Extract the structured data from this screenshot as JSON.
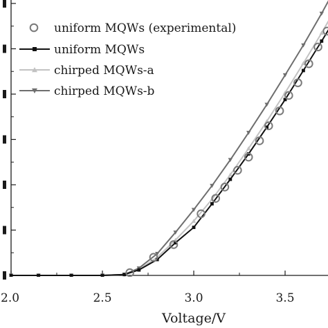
{
  "chart_data": {
    "type": "line",
    "xlabel": "Voltage/V",
    "ylabel": "",
    "xlim": [
      2.0,
      3.75
    ],
    "ylim": [
      0,
      6
    ],
    "x_ticks": [
      {
        "value": 2.0,
        "label": "2.0"
      },
      {
        "value": 2.5,
        "label": "2.5"
      },
      {
        "value": 3.0,
        "label": "3.0"
      },
      {
        "value": 3.5,
        "label": "3.5"
      }
    ],
    "y_ticks": [
      0,
      1,
      2,
      3,
      4,
      5,
      6
    ],
    "legend_position": "top-left",
    "series": [
      {
        "name": "uniform MQWs (experimental)",
        "style": "markers",
        "marker": "open-circle",
        "color": "#7a7a7a",
        "x": [
          2.65,
          2.78,
          2.89,
          3.04,
          3.12,
          3.17,
          3.24,
          3.3,
          3.36,
          3.41,
          3.47,
          3.52,
          3.57,
          3.63,
          3.68,
          3.73
        ],
        "y": [
          0.06,
          0.4,
          0.68,
          1.36,
          1.7,
          1.95,
          2.32,
          2.61,
          2.97,
          3.3,
          3.63,
          3.97,
          4.25,
          4.67,
          5.04,
          5.39
        ]
      },
      {
        "name": "uniform MQWs",
        "style": "line-markers",
        "marker": "square",
        "color": "#111111",
        "x": [
          2.0,
          2.15,
          2.33,
          2.5,
          2.62,
          2.7,
          2.8,
          2.9,
          3.0,
          3.1,
          3.2,
          3.3,
          3.4,
          3.5,
          3.6,
          3.7,
          3.75
        ],
        "y": [
          0.0,
          0.0,
          0.0,
          0.0,
          0.02,
          0.12,
          0.35,
          0.72,
          1.06,
          1.58,
          2.12,
          2.68,
          3.27,
          3.88,
          4.52,
          5.17,
          5.5
        ]
      },
      {
        "name": "chirped MQWs-a",
        "style": "line-markers",
        "marker": "triangle-up",
        "color": "#c2c2c2",
        "x": [
          2.0,
          2.15,
          2.33,
          2.5,
          2.62,
          2.7,
          2.8,
          2.9,
          3.0,
          3.1,
          3.2,
          3.3,
          3.4,
          3.5,
          3.6,
          3.7,
          3.75
        ],
        "y": [
          0.0,
          0.0,
          0.0,
          0.0,
          0.02,
          0.13,
          0.4,
          0.78,
          1.2,
          1.68,
          2.22,
          2.8,
          3.4,
          4.03,
          4.68,
          5.35,
          5.7
        ]
      },
      {
        "name": "chirped MQWs-b",
        "style": "line-markers",
        "marker": "triangle-down",
        "color": "#6e6e6e",
        "x": [
          2.0,
          2.15,
          2.33,
          2.5,
          2.62,
          2.7,
          2.8,
          2.9,
          3.0,
          3.1,
          3.2,
          3.3,
          3.4,
          3.5,
          3.6,
          3.7,
          3.75
        ],
        "y": [
          0.0,
          0.0,
          0.0,
          0.0,
          0.02,
          0.16,
          0.48,
          0.95,
          1.45,
          1.98,
          2.55,
          3.15,
          3.77,
          4.42,
          5.08,
          5.78,
          6.15
        ]
      }
    ]
  }
}
